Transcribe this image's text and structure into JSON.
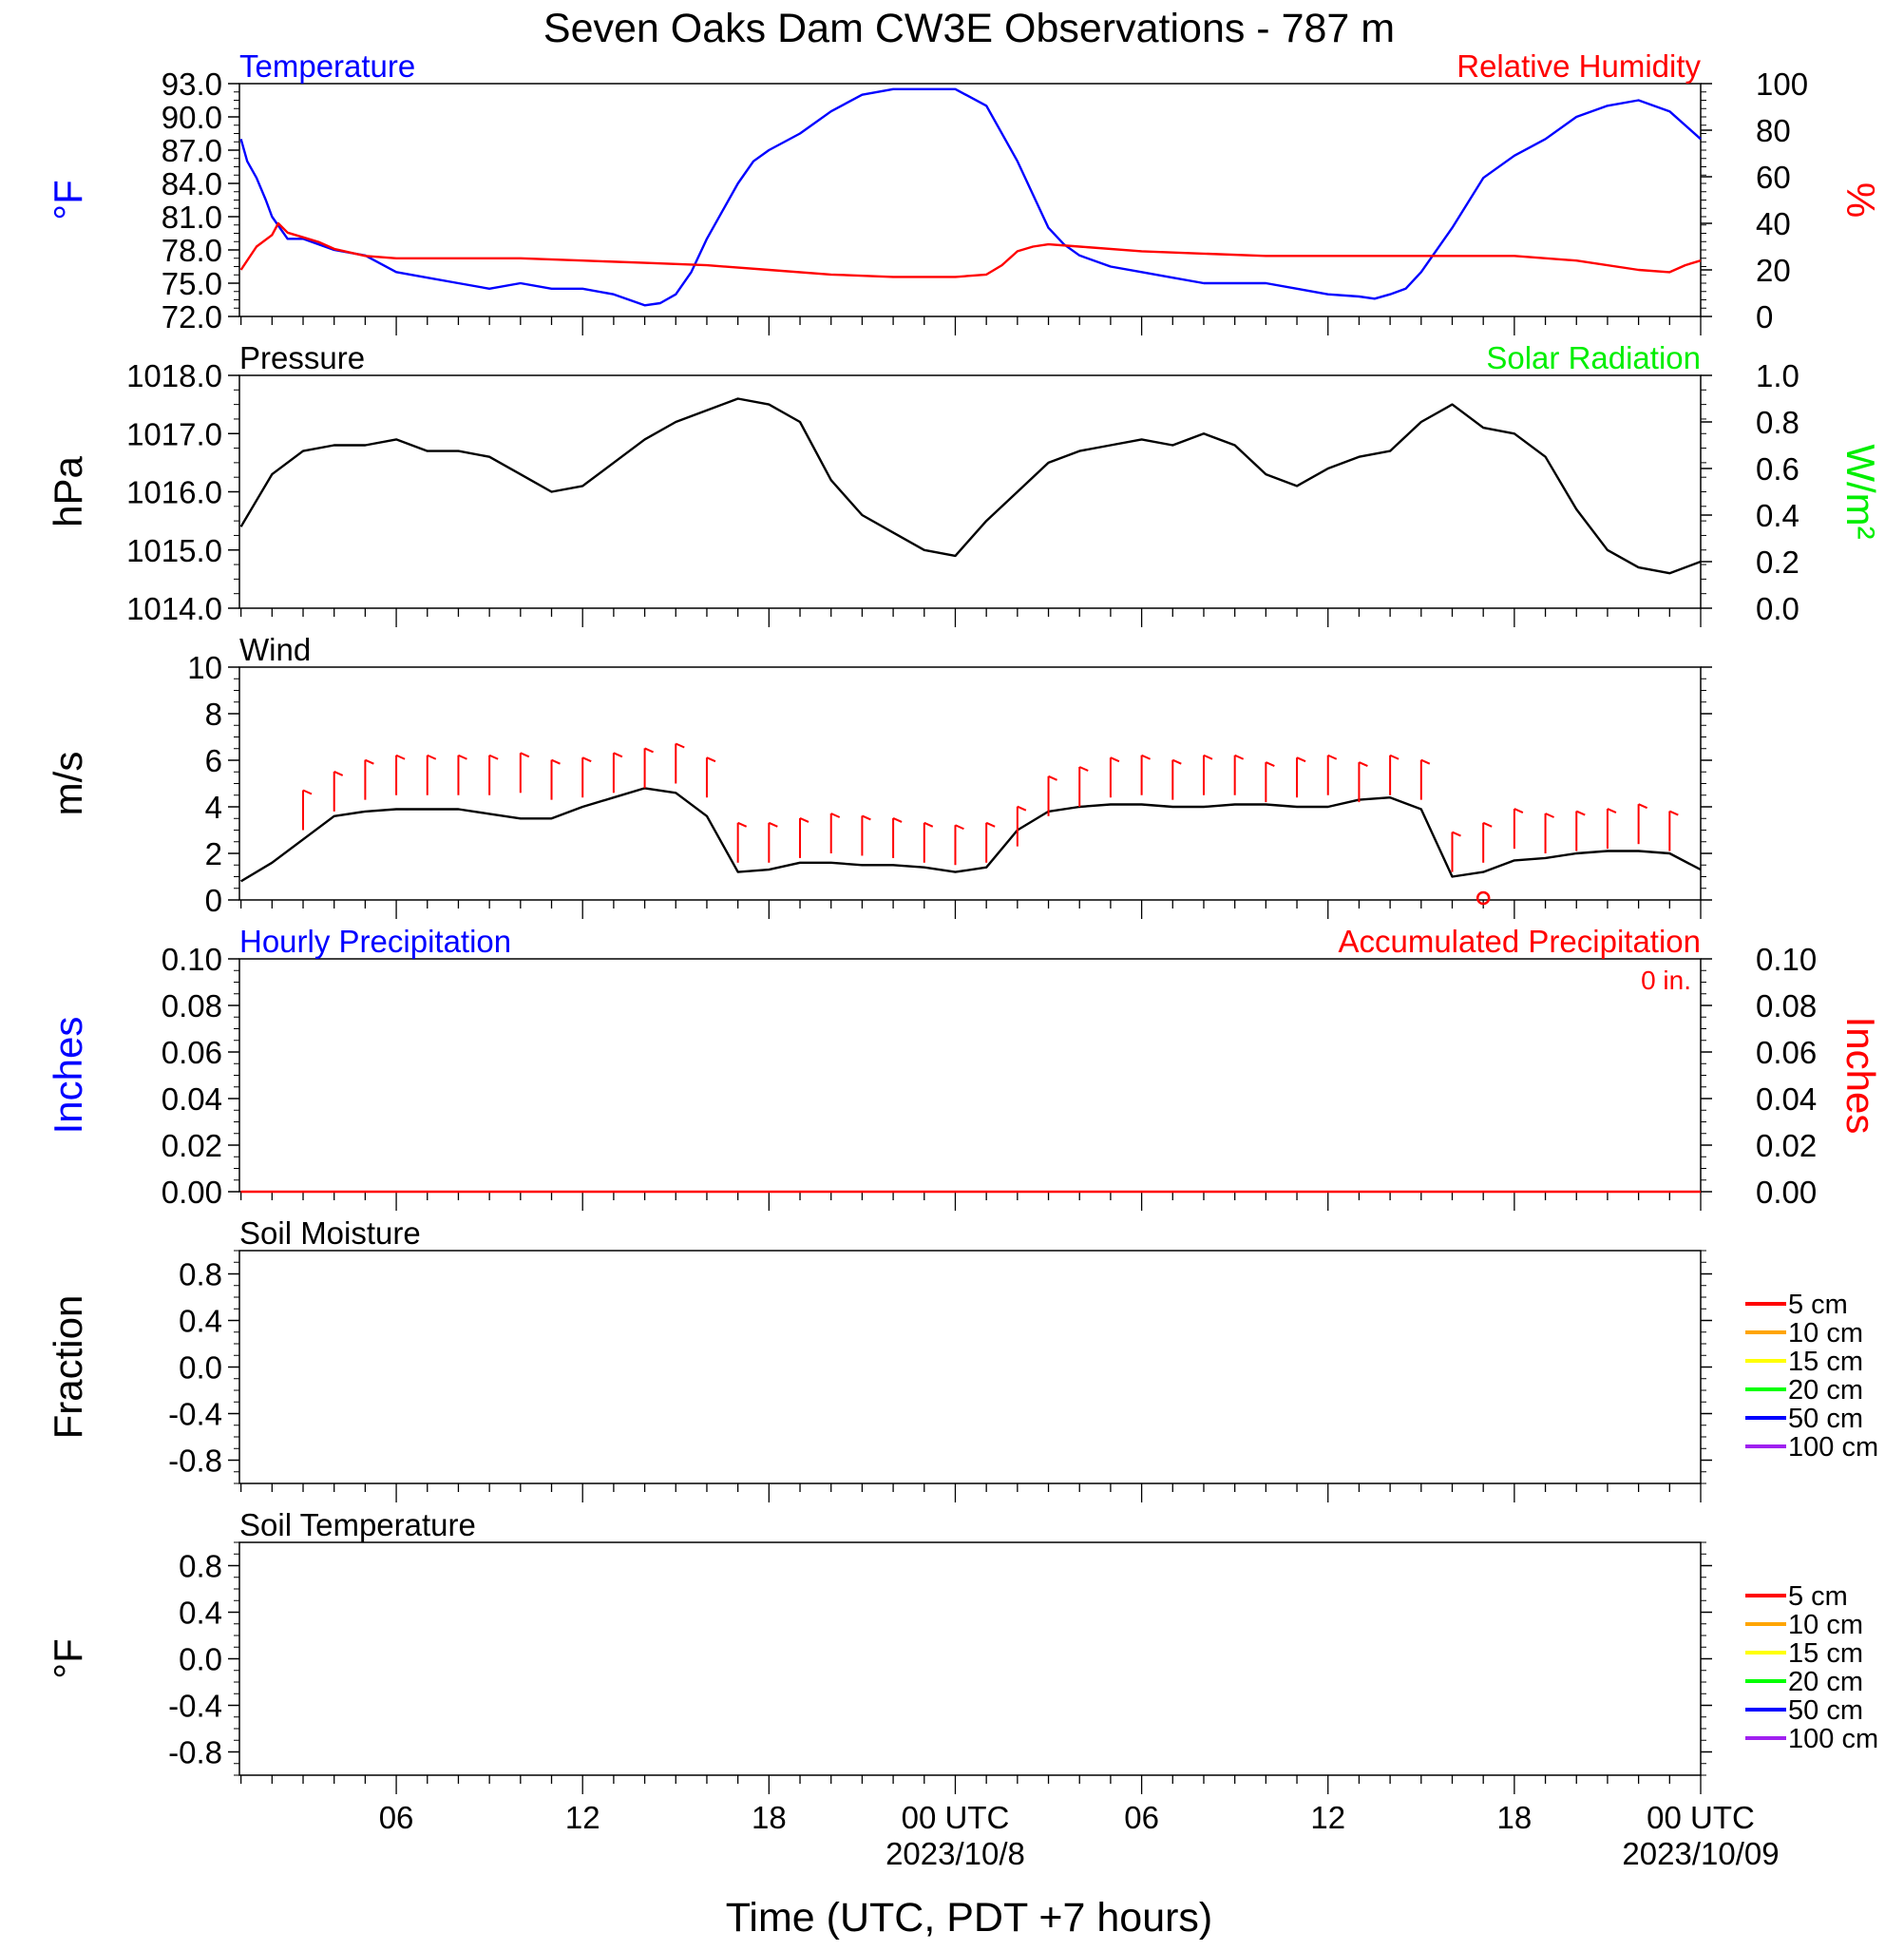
{
  "figure": {
    "title": "Seven Oaks Dam CW3E Observations - 787 m",
    "xlabel": "Time (UTC, PDT +7 hours)",
    "x_ticks": [
      {
        "hour": 6,
        "label": "06",
        "sub": ""
      },
      {
        "hour": 12,
        "label": "12",
        "sub": ""
      },
      {
        "hour": 18,
        "label": "18",
        "sub": ""
      },
      {
        "hour": 24,
        "label": "00 UTC",
        "sub": "2023/10/8"
      },
      {
        "hour": 30,
        "label": "06",
        "sub": ""
      },
      {
        "hour": 36,
        "label": "12",
        "sub": ""
      },
      {
        "hour": 42,
        "label": "18",
        "sub": ""
      },
      {
        "hour": 48,
        "label": "00 UTC",
        "sub": "2023/10/09"
      }
    ]
  },
  "colors": {
    "temperature": "#0000ff",
    "humidity": "#ff0000",
    "pressure": "#000000",
    "solar": "#00ee00",
    "wind": "#000000",
    "wind_barb": "#ff0000",
    "hourly_precip": "#0000ff",
    "accum_precip": "#ff0000"
  },
  "legend": {
    "depths": [
      {
        "label": "5 cm",
        "color": "#ff0000"
      },
      {
        "label": "10 cm",
        "color": "#ffa500"
      },
      {
        "label": "15 cm",
        "color": "#ffff00"
      },
      {
        "label": "20 cm",
        "color": "#00ff00"
      },
      {
        "label": "50 cm",
        "color": "#0000ff"
      },
      {
        "label": "100 cm",
        "color": "#a020f0"
      }
    ]
  },
  "chart_data": [
    {
      "type": "line",
      "panel": "temperature-humidity",
      "left_title": "Temperature",
      "right_title": "Relative Humidity",
      "ylabel_left": "°F",
      "ylabel_right": "%",
      "ylim_left": [
        72,
        93
      ],
      "ylim_right": [
        0,
        100
      ],
      "yticks_left": [
        "93.0",
        "90.0",
        "87.0",
        "84.0",
        "81.0",
        "78.0",
        "75.0",
        "72.0"
      ],
      "yticks_right": [
        "100",
        "80",
        "60",
        "40",
        "20",
        "0"
      ],
      "x_unit": "hours since 2023-10-07 00 UTC",
      "series": [
        {
          "name": "Temperature",
          "axis": "left",
          "x": [
            1.0,
            1.2,
            1.5,
            1.8,
            2.0,
            2.5,
            3.0,
            4.0,
            5.0,
            6.0,
            7.0,
            8.0,
            9.0,
            10.0,
            11.0,
            12.0,
            13.0,
            14.0,
            14.5,
            15.0,
            15.5,
            16.0,
            16.5,
            17.0,
            17.5,
            18.0,
            19.0,
            20.0,
            21.0,
            22.0,
            23.0,
            24.0,
            25.0,
            26.0,
            26.5,
            27.0,
            27.5,
            28.0,
            29.0,
            30.0,
            31.0,
            32.0,
            33.0,
            34.0,
            35.0,
            36.0,
            37.0,
            37.5,
            38.0,
            38.5,
            39.0,
            40.0,
            41.0,
            42.0,
            43.0,
            44.0,
            45.0,
            46.0,
            47.0,
            48.0
          ],
          "values": [
            88.0,
            86.0,
            84.5,
            82.5,
            81.0,
            79.0,
            79.0,
            78.0,
            77.5,
            76.0,
            75.5,
            75.0,
            74.5,
            75.0,
            74.5,
            74.5,
            74.0,
            73.0,
            73.2,
            74.0,
            76.0,
            79.0,
            81.5,
            84.0,
            86.0,
            87.0,
            88.5,
            90.5,
            92.0,
            92.5,
            92.5,
            92.5,
            91.0,
            86.0,
            83.0,
            80.0,
            78.5,
            77.5,
            76.5,
            76.0,
            75.5,
            75.0,
            75.0,
            75.0,
            74.5,
            74.0,
            73.8,
            73.6,
            74.0,
            74.5,
            76.0,
            80.0,
            84.5,
            86.5,
            88.0,
            90.0,
            91.0,
            91.5,
            90.5,
            88.0
          ]
        },
        {
          "name": "Relative Humidity",
          "axis": "right",
          "x": [
            1.0,
            1.5,
            2.0,
            2.2,
            2.5,
            3.0,
            3.5,
            4.0,
            5.0,
            6.0,
            8.0,
            10.0,
            12.0,
            14.0,
            16.0,
            18.0,
            20.0,
            22.0,
            24.0,
            25.0,
            25.5,
            26.0,
            26.5,
            27.0,
            28.0,
            30.0,
            32.0,
            34.0,
            36.0,
            38.0,
            40.0,
            42.0,
            44.0,
            46.0,
            47.0,
            47.5,
            48.0
          ],
          "values": [
            20.0,
            30.0,
            35.0,
            40.0,
            36.0,
            34.0,
            32.0,
            29.0,
            26.0,
            25.0,
            25.0,
            25.0,
            24.0,
            23.0,
            22.0,
            20.0,
            18.0,
            17.0,
            17.0,
            18.0,
            22.0,
            28.0,
            30.0,
            31.0,
            30.0,
            28.0,
            27.0,
            26.0,
            26.0,
            26.0,
            26.0,
            26.0,
            24.0,
            20.0,
            19.0,
            22.0,
            24.0
          ]
        }
      ]
    },
    {
      "type": "line",
      "panel": "pressure-solar",
      "left_title": "Pressure",
      "right_title": "Solar Radiation",
      "ylabel_left": "hPa",
      "ylabel_right": "W/m²",
      "ylim_left": [
        1014,
        1018
      ],
      "ylim_right": [
        0,
        1
      ],
      "yticks_left": [
        "1018.0",
        "1017.0",
        "1016.0",
        "1015.0",
        "1014.0"
      ],
      "yticks_right": [
        "1.0",
        "0.8",
        "0.6",
        "0.4",
        "0.2",
        "0.0"
      ],
      "x_unit": "hours since 2023-10-07 00 UTC",
      "series": [
        {
          "name": "Pressure",
          "axis": "left",
          "x": [
            1.0,
            2.0,
            3.0,
            4.0,
            5.0,
            6.0,
            7.0,
            8.0,
            9.0,
            10.0,
            11.0,
            12.0,
            13.0,
            14.0,
            15.0,
            16.0,
            17.0,
            18.0,
            19.0,
            20.0,
            21.0,
            22.0,
            23.0,
            24.0,
            25.0,
            26.0,
            27.0,
            28.0,
            29.0,
            30.0,
            31.0,
            32.0,
            33.0,
            34.0,
            35.0,
            36.0,
            37.0,
            38.0,
            39.0,
            40.0,
            41.0,
            42.0,
            43.0,
            44.0,
            45.0,
            46.0,
            47.0,
            48.0
          ],
          "values": [
            1015.4,
            1016.3,
            1016.7,
            1016.8,
            1016.8,
            1016.9,
            1016.7,
            1016.7,
            1016.6,
            1016.3,
            1016.0,
            1016.1,
            1016.5,
            1016.9,
            1017.2,
            1017.4,
            1017.6,
            1017.5,
            1017.2,
            1016.2,
            1015.6,
            1015.3,
            1015.0,
            1014.9,
            1015.5,
            1016.0,
            1016.5,
            1016.7,
            1016.8,
            1016.9,
            1016.8,
            1017.0,
            1016.8,
            1016.3,
            1016.1,
            1016.4,
            1016.6,
            1016.7,
            1017.2,
            1017.5,
            1017.1,
            1017.0,
            1016.6,
            1015.7,
            1015.0,
            1014.7,
            1014.6,
            1014.8
          ]
        }
      ]
    },
    {
      "type": "line",
      "panel": "wind",
      "left_title": "Wind",
      "ylabel_left": "m/s",
      "ylim_left": [
        0,
        10
      ],
      "yticks_left": [
        "10",
        "8",
        "6",
        "4",
        "2",
        "0"
      ],
      "x_unit": "hours since 2023-10-07 00 UTC",
      "series": [
        {
          "name": "Wind",
          "axis": "left",
          "x": [
            1.0,
            2.0,
            3.0,
            4.0,
            5.0,
            6.0,
            7.0,
            8.0,
            9.0,
            10.0,
            11.0,
            12.0,
            13.0,
            14.0,
            15.0,
            16.0,
            17.0,
            18.0,
            19.0,
            20.0,
            21.0,
            22.0,
            23.0,
            24.0,
            25.0,
            26.0,
            27.0,
            28.0,
            29.0,
            30.0,
            31.0,
            32.0,
            33.0,
            34.0,
            35.0,
            36.0,
            37.0,
            38.0,
            39.0,
            40.0,
            41.0,
            42.0,
            43.0,
            44.0,
            45.0,
            46.0,
            47.0,
            48.0
          ],
          "values": [
            0.8,
            1.6,
            2.6,
            3.6,
            3.8,
            3.9,
            3.9,
            3.9,
            3.7,
            3.5,
            3.5,
            4.0,
            4.4,
            4.8,
            4.6,
            3.6,
            1.2,
            1.3,
            1.6,
            1.6,
            1.5,
            1.5,
            1.4,
            1.2,
            1.4,
            3.0,
            3.8,
            4.0,
            4.1,
            4.1,
            4.0,
            4.0,
            4.1,
            4.1,
            4.0,
            4.0,
            4.3,
            4.4,
            3.9,
            1.0,
            1.2,
            1.7,
            1.8,
            2.0,
            2.1,
            2.1,
            2.0,
            1.3
          ]
        }
      ],
      "barbs": {
        "x": [
          3,
          4,
          5,
          6,
          7,
          8,
          9,
          10,
          11,
          12,
          13,
          14,
          15,
          16,
          17,
          18,
          19,
          20,
          21,
          22,
          23,
          24,
          25,
          26,
          27,
          28,
          29,
          30,
          31,
          32,
          33,
          34,
          35,
          36,
          37,
          38,
          39,
          40,
          41,
          42,
          43,
          44,
          45,
          46,
          47
        ],
        "y": [
          3.0,
          3.8,
          4.3,
          4.5,
          4.5,
          4.5,
          4.5,
          4.6,
          4.3,
          4.4,
          4.6,
          4.8,
          5.0,
          4.4,
          1.6,
          1.6,
          1.8,
          2.0,
          1.9,
          1.8,
          1.6,
          1.5,
          1.6,
          2.3,
          3.6,
          4.0,
          4.4,
          4.5,
          4.3,
          4.5,
          4.5,
          4.2,
          4.4,
          4.5,
          4.2,
          4.5,
          4.3,
          1.2,
          1.6,
          2.2,
          2.0,
          2.1,
          2.2,
          2.4,
          2.1
        ]
      },
      "calm_marker_x": 41.0
    },
    {
      "type": "line",
      "panel": "precipitation",
      "left_title": "Hourly Precipitation",
      "right_title": "Accumulated Precipitation",
      "total_label": "0 in.",
      "ylabel_left": "Inches",
      "ylabel_right": "Inches",
      "ylim_left": [
        0,
        0.1
      ],
      "ylim_right": [
        0,
        0.1
      ],
      "yticks_left": [
        "0.10",
        "0.08",
        "0.06",
        "0.04",
        "0.02",
        "0.00"
      ],
      "yticks_right": [
        "0.10",
        "0.08",
        "0.06",
        "0.04",
        "0.02",
        "0.00"
      ],
      "x_unit": "hours since 2023-10-07 00 UTC",
      "series": [
        {
          "name": "Accumulated Precipitation",
          "axis": "right",
          "x": [
            1.0,
            48.0
          ],
          "values": [
            0.0,
            0.0
          ]
        }
      ]
    },
    {
      "type": "line",
      "panel": "soil-moisture",
      "left_title": "Soil Moisture",
      "ylabel_left": "Fraction",
      "ylim_left": [
        -1.0,
        1.0
      ],
      "yticks_left": [
        "0.8",
        "0.4",
        "0.0",
        "-0.4",
        "-0.8"
      ],
      "series": []
    },
    {
      "type": "line",
      "panel": "soil-temperature",
      "left_title": "Soil Temperature",
      "ylabel_left": "°F",
      "ylim_left": [
        -1.0,
        1.0
      ],
      "yticks_left": [
        "0.8",
        "0.4",
        "0.0",
        "-0.4",
        "-0.8"
      ],
      "series": []
    }
  ]
}
